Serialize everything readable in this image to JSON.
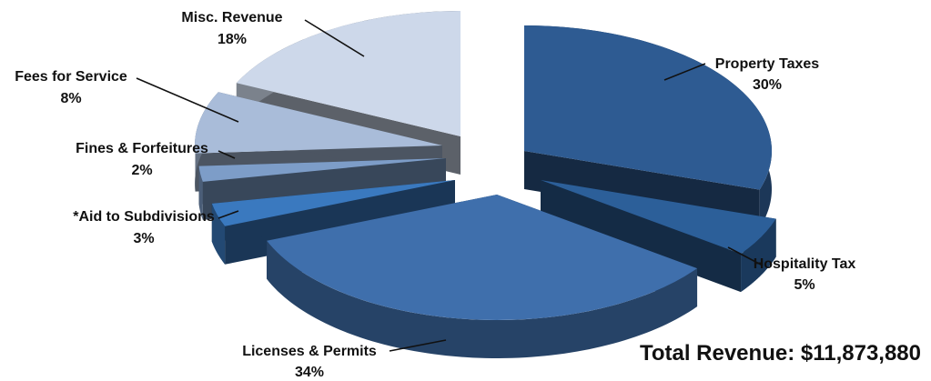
{
  "chart_data": {
    "type": "pie",
    "style": "3d-exploded",
    "legend": "none",
    "slices": [
      {
        "label": "Property Taxes",
        "value": 30,
        "value_label": "30%",
        "color": "#2e5b92"
      },
      {
        "label": "Hospitality Tax",
        "value": 5,
        "value_label": "5%",
        "color": "#2c5f99"
      },
      {
        "label": "Licenses & Permits",
        "value": 34,
        "value_label": "34%",
        "color": "#3f6fac"
      },
      {
        "label": "*Aid to Subdivisions",
        "value": 3,
        "value_label": "3%",
        "color": "#3a79bf"
      },
      {
        "label": "Fines & Forfeitures",
        "value": 2,
        "value_label": "2%",
        "color": "#7d9dc8"
      },
      {
        "label": "Fees for Service",
        "value": 8,
        "value_label": "8%",
        "color": "#a9bcd9"
      },
      {
        "label": "Misc. Revenue",
        "value": 18,
        "value_label": "18%",
        "color": "#cdd8ea"
      }
    ],
    "annotation": "Total Revenue: $11,873,880"
  }
}
